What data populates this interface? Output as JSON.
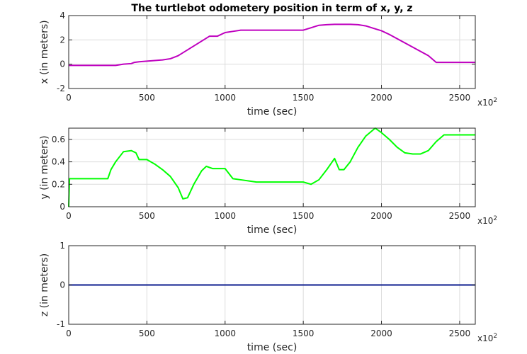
{
  "chart_data": [
    {
      "type": "line",
      "title": "The turtlebot odometery position in term of x, y, z",
      "xlabel": "time (sec)",
      "ylabel": "x (in meters)",
      "x_exponent_base": "x10",
      "x_exponent_power": "2",
      "xlim": [
        0,
        2600
      ],
      "ylim": [
        -2,
        4
      ],
      "xticks": [
        0,
        500,
        1000,
        1500,
        2000,
        2500
      ],
      "yticks": [
        -2,
        0,
        2,
        4
      ],
      "grid": true,
      "series": [
        {
          "color": "#bf00bf",
          "x": [
            0,
            300,
            350,
            400,
            420,
            450,
            500,
            600,
            650,
            700,
            800,
            900,
            950,
            1000,
            1050,
            1100,
            1200,
            1300,
            1400,
            1500,
            1550,
            1600,
            1650,
            1700,
            1750,
            1800,
            1850,
            1900,
            1950,
            2000,
            2050,
            2100,
            2200,
            2300,
            2350,
            2400,
            2500,
            2600
          ],
          "y": [
            -0.1,
            -0.1,
            0.0,
            0.05,
            0.15,
            0.2,
            0.25,
            0.35,
            0.45,
            0.7,
            1.5,
            2.3,
            2.3,
            2.6,
            2.7,
            2.8,
            2.8,
            2.8,
            2.8,
            2.8,
            3.0,
            3.2,
            3.25,
            3.28,
            3.28,
            3.28,
            3.25,
            3.15,
            2.95,
            2.75,
            2.45,
            2.1,
            1.4,
            0.7,
            0.15,
            0.15,
            0.15,
            0.15
          ]
        }
      ]
    },
    {
      "type": "line",
      "title": "",
      "xlabel": "time (sec)",
      "ylabel": "y (in meters)",
      "x_exponent_base": "x10",
      "x_exponent_power": "2",
      "xlim": [
        0,
        2600
      ],
      "ylim": [
        0,
        0.7
      ],
      "xticks": [
        0,
        500,
        1000,
        1500,
        2000,
        2500
      ],
      "yticks": [
        0,
        0.2,
        0.4,
        0.6
      ],
      "ytick_labels": [
        "0",
        "0.2",
        "0.4",
        "0.6"
      ],
      "grid": true,
      "series": [
        {
          "color": "#00ff00",
          "x": [
            0,
            5,
            20,
            100,
            200,
            250,
            270,
            300,
            350,
            400,
            430,
            450,
            470,
            500,
            550,
            600,
            650,
            700,
            730,
            760,
            800,
            850,
            880,
            920,
            950,
            1000,
            1050,
            1100,
            1200,
            1300,
            1400,
            1500,
            1550,
            1600,
            1650,
            1700,
            1730,
            1760,
            1800,
            1850,
            1900,
            1960,
            2000,
            2050,
            2100,
            2150,
            2200,
            2250,
            2300,
            2350,
            2400,
            2500,
            2600
          ],
          "y": [
            0.0,
            0.25,
            0.25,
            0.25,
            0.25,
            0.25,
            0.33,
            0.4,
            0.49,
            0.5,
            0.48,
            0.42,
            0.42,
            0.42,
            0.38,
            0.33,
            0.27,
            0.17,
            0.07,
            0.08,
            0.2,
            0.32,
            0.36,
            0.34,
            0.34,
            0.34,
            0.25,
            0.24,
            0.22,
            0.22,
            0.22,
            0.22,
            0.2,
            0.24,
            0.33,
            0.43,
            0.33,
            0.33,
            0.4,
            0.53,
            0.63,
            0.7,
            0.66,
            0.6,
            0.53,
            0.48,
            0.47,
            0.47,
            0.5,
            0.58,
            0.64,
            0.64,
            0.64
          ]
        }
      ]
    },
    {
      "type": "line",
      "title": "",
      "xlabel": "time (sec)",
      "ylabel": "z (in meters)",
      "x_exponent_base": "x10",
      "x_exponent_power": "2",
      "xlim": [
        0,
        2600
      ],
      "ylim": [
        -1,
        1
      ],
      "xticks": [
        0,
        500,
        1000,
        1500,
        2000,
        2500
      ],
      "yticks": [
        -1,
        0,
        1
      ],
      "grid": true,
      "series": [
        {
          "color": "#0a1a8c",
          "x": [
            0,
            2600
          ],
          "y": [
            0,
            0
          ]
        }
      ]
    }
  ]
}
